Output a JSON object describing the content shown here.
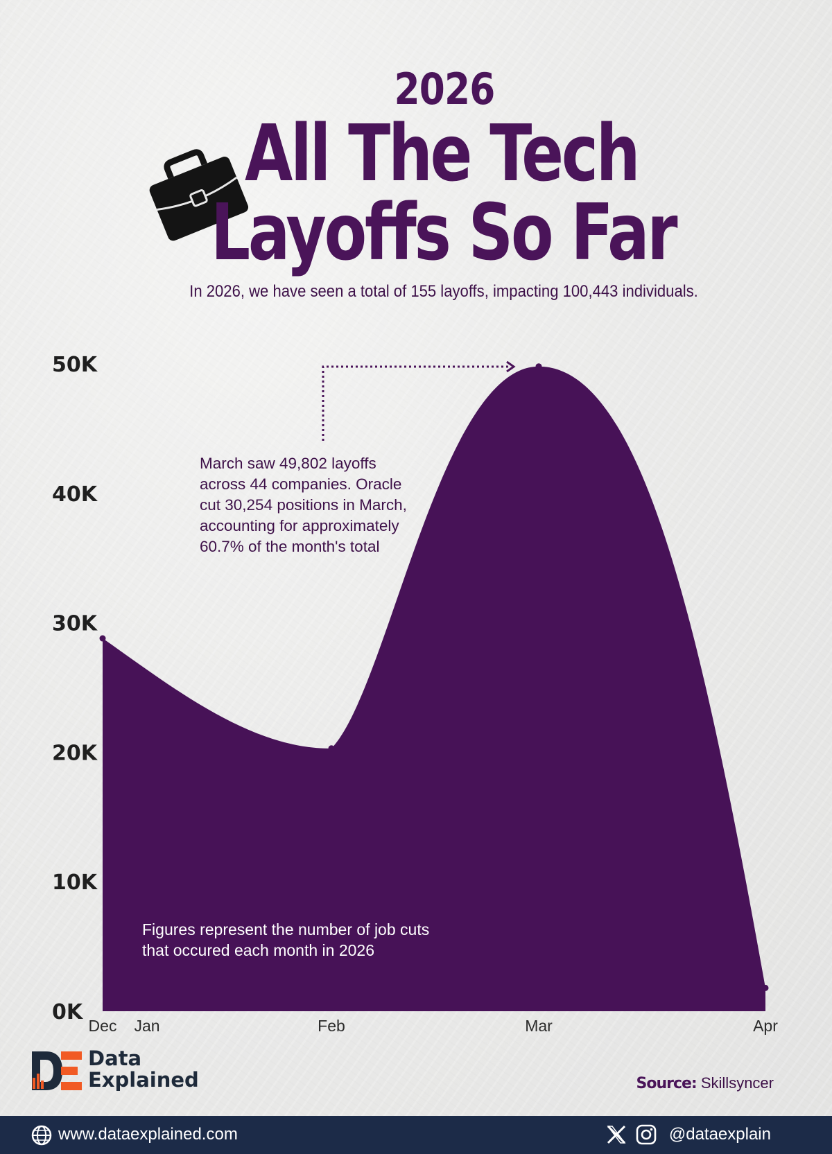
{
  "header": {
    "year": "2026",
    "title_line1": "All The Tech",
    "title_line2": "Layoffs So Far",
    "subtitle": "In 2026, we have seen a total of 155 layoffs, impacting 100,443 individuals."
  },
  "annotation": "March saw 49,802 layoffs\nacross 44 companies. Oracle\ncut 30,254 positions in March,\naccounting for approximately\n60.7% of the month's total",
  "note": "Figures represent the number of job cuts\nthat occured each month in 2026",
  "chart_data": {
    "type": "area",
    "title": "All The Tech Layoffs So Far",
    "x": [
      "Dec",
      "Feb",
      "Mar",
      "Apr"
    ],
    "values": [
      28800,
      20300,
      49802,
      1800
    ],
    "x_ticks": [
      "Dec",
      "Jan",
      "Feb",
      "Mar",
      "Apr"
    ],
    "y_ticks": [
      "0K",
      "10K",
      "20K",
      "30K",
      "40K",
      "50K"
    ],
    "ylim": [
      0,
      50000
    ],
    "grid": false,
    "color": "#471257"
  },
  "branding": {
    "logo_line1": "Data",
    "logo_line2": "Explained",
    "source_label": "Source:",
    "source_value": "Skillsyncer",
    "website": "www.dataexplained.com",
    "handle": "@dataexplain",
    "icons": [
      "briefcase-icon",
      "globe-icon",
      "x-icon",
      "instagram-icon"
    ]
  },
  "colors": {
    "accent": "#4a1459",
    "area": "#471257",
    "footer": "#1c2b48",
    "logo_orange": "#f15a24",
    "logo_navy": "#1e2a3a"
  }
}
